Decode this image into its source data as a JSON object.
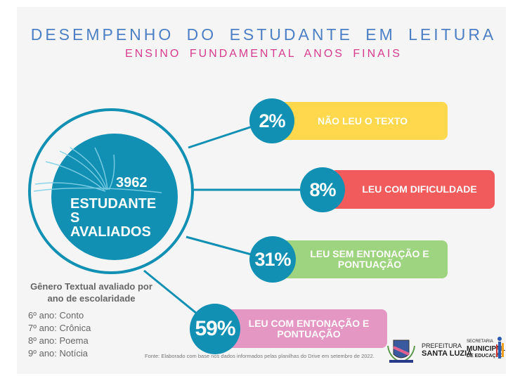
{
  "header": {
    "title": "DESEMPENHO  DO ESTUDANTE  EM LEITURA",
    "subtitle": "ENSINO FUNDAMENTAL  ANOS FINAIS"
  },
  "center": {
    "count": "3962",
    "label": "ESTUDANTE S AVALIADOS",
    "icon": "open-book-icon",
    "color": "#1190b4"
  },
  "results": [
    {
      "percent": "2%",
      "label": "NÃO LEU O TEXTO",
      "color": "#ffd84d"
    },
    {
      "percent": "8%",
      "label": "LEU COM DIFICULDADE",
      "color": "#f25b5b"
    },
    {
      "percent": "31%",
      "label": "LEU SEM ENTONAÇÃO E PONTUAÇÃO",
      "color": "#9ed47f"
    },
    {
      "percent": "59%",
      "label": "LEU COM ENTONAÇÃO E PONTUAÇÃO",
      "color": "#e597c4"
    }
  ],
  "genres": {
    "heading": "Gênero Textual avaliado por ano de escolaridade",
    "items": [
      "6º ano: Conto",
      "7º ano: Crônica",
      "8º ano: Poema",
      "9º ano: Notícia"
    ]
  },
  "source": "Fonte: Elaborado com base nos dados informados pelas planilhas do Drive em  setembro de 2022.",
  "logos": {
    "prefeitura_line1": "PREFEITURA",
    "prefeitura_line2": "SANTA LUZIA",
    "secretaria_line1": "SECRETARIA",
    "secretaria_line2": "MUNICIPAL",
    "secretaria_line3": "DE EDUCAÇÃO"
  }
}
